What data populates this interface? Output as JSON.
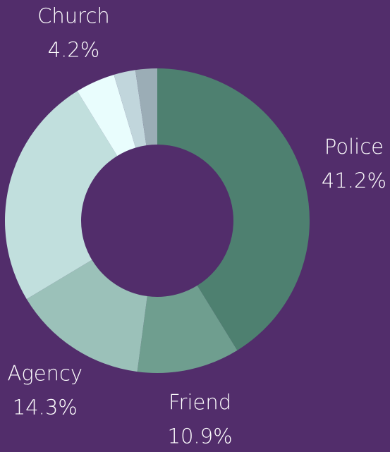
{
  "chart_data": {
    "type": "donut",
    "categories": [
      "Police",
      "Friend",
      "Agency",
      null,
      "Church",
      null,
      null
    ],
    "values": [
      41.2,
      10.9,
      14.3,
      24.8,
      4.2,
      2.3,
      2.3
    ],
    "value_labels": [
      "41.2%",
      "10.9%",
      "14.3%",
      null,
      "4.2%",
      null,
      null
    ],
    "colors": [
      "#4e8070",
      "#6f9e8f",
      "#9bc1b9",
      "#c1dfdd",
      "#e9fdfd",
      "#c1d6dc",
      "#9badb6"
    ]
  }
}
